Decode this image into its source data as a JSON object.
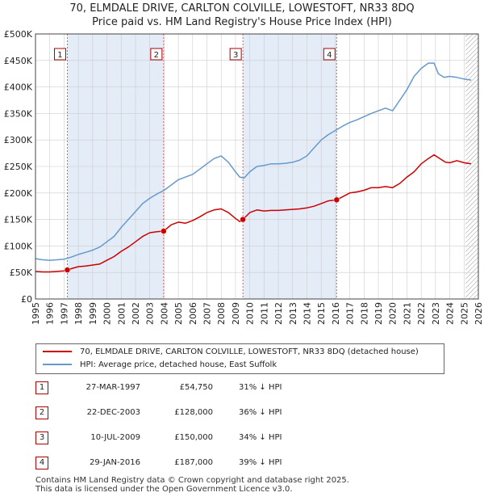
{
  "title_line1": "70, ELMDALE DRIVE, CARLTON COLVILLE, LOWESTOFT, NR33 8DQ",
  "title_line2": "Price paid vs. HM Land Registry's House Price Index (HPI)",
  "colors": {
    "price_line": "#cc0000",
    "hpi_line": "#6699cc",
    "shade": "#e4ecf8",
    "vline": "#e06060",
    "grid": "#cccccc",
    "hatch": "#999999"
  },
  "chart_data": {
    "type": "line",
    "ylim": [
      0,
      500000
    ],
    "xlim": [
      1995,
      2026
    ],
    "yticks": [
      0,
      50000,
      100000,
      150000,
      200000,
      250000,
      300000,
      350000,
      400000,
      450000,
      500000
    ],
    "ytick_labels": [
      "£0",
      "£50K",
      "£100K",
      "£150K",
      "£200K",
      "£250K",
      "£300K",
      "£350K",
      "£400K",
      "£450K",
      "£500K"
    ],
    "xticks": [
      1995,
      1996,
      1997,
      1998,
      1999,
      2000,
      2001,
      2002,
      2003,
      2004,
      2005,
      2006,
      2007,
      2008,
      2009,
      2010,
      2011,
      2012,
      2013,
      2014,
      2015,
      2016,
      2017,
      2018,
      2019,
      2020,
      2021,
      2022,
      2023,
      2024,
      2025,
      2026
    ],
    "xtick_labels": [
      "1995",
      "1996",
      "1997",
      "1998",
      "1999",
      "2000",
      "2001",
      "2002",
      "2003",
      "2004",
      "2005",
      "2006",
      "2007",
      "2008",
      "2009",
      "2010",
      "2011",
      "2012",
      "2013",
      "2014",
      "2015",
      "2016",
      "2017",
      "2018",
      "2019",
      "2020",
      "2021",
      "2022",
      "2023",
      "2024",
      "2025",
      "2026"
    ],
    "shaded_ranges": [
      [
        1997.23,
        2003.97
      ],
      [
        2009.52,
        2016.08
      ]
    ],
    "future_from": 2025.1,
    "series": [
      {
        "name": "70, ELMDALE DRIVE, CARLTON COLVILLE, LOWESTOFT, NR33 8DQ (detached house)",
        "color": "#cc0000",
        "x": [
          1995.0,
          1995.5,
          1996.0,
          1996.5,
          1997.0,
          1997.23,
          1997.6,
          1998.0,
          1998.5,
          1999.0,
          1999.5,
          2000.0,
          2000.5,
          2001.0,
          2001.5,
          2002.0,
          2002.5,
          2003.0,
          2003.5,
          2003.97,
          2004.5,
          2005.0,
          2005.5,
          2006.0,
          2006.5,
          2007.0,
          2007.5,
          2008.0,
          2008.5,
          2009.0,
          2009.3,
          2009.52,
          2010.0,
          2010.5,
          2011.0,
          2011.5,
          2012.0,
          2012.5,
          2013.0,
          2013.5,
          2014.0,
          2014.5,
          2015.0,
          2015.5,
          2016.08,
          2016.5,
          2017.0,
          2017.5,
          2018.0,
          2018.5,
          2019.0,
          2019.5,
          2020.0,
          2020.5,
          2021.0,
          2021.5,
          2022.0,
          2022.5,
          2022.9,
          2023.3,
          2023.7,
          2024.0,
          2024.5,
          2025.0,
          2025.5
        ],
        "values": [
          52000,
          51000,
          51000,
          52000,
          53000,
          54750,
          58000,
          61000,
          62000,
          64000,
          66000,
          73000,
          80000,
          90000,
          98000,
          108000,
          118000,
          125000,
          127000,
          128000,
          140000,
          145000,
          143000,
          148000,
          155000,
          163000,
          168000,
          170000,
          163000,
          152000,
          146000,
          150000,
          163000,
          168000,
          166000,
          167000,
          167000,
          168000,
          169000,
          170000,
          172000,
          175000,
          180000,
          185000,
          187000,
          193000,
          200000,
          202000,
          205000,
          210000,
          210000,
          212000,
          210000,
          218000,
          230000,
          240000,
          255000,
          265000,
          272000,
          265000,
          258000,
          257000,
          261000,
          257000,
          255000
        ]
      },
      {
        "name": "HPI: Average price, detached house, East Suffolk",
        "color": "#6699cc",
        "x": [
          1995.0,
          1995.5,
          1996.0,
          1996.5,
          1997.0,
          1997.5,
          1998.0,
          1998.5,
          1999.0,
          1999.5,
          2000.0,
          2000.5,
          2001.0,
          2001.5,
          2002.0,
          2002.5,
          2003.0,
          2003.5,
          2004.0,
          2004.5,
          2005.0,
          2005.5,
          2006.0,
          2006.5,
          2007.0,
          2007.5,
          2008.0,
          2008.5,
          2009.0,
          2009.3,
          2009.6,
          2010.0,
          2010.5,
          2011.0,
          2011.5,
          2012.0,
          2012.5,
          2013.0,
          2013.5,
          2014.0,
          2014.5,
          2015.0,
          2015.5,
          2016.0,
          2016.5,
          2017.0,
          2017.5,
          2018.0,
          2018.5,
          2019.0,
          2019.5,
          2020.0,
          2020.5,
          2021.0,
          2021.5,
          2022.0,
          2022.5,
          2022.9,
          2023.2,
          2023.6,
          2024.0,
          2024.5,
          2025.0,
          2025.5
        ],
        "values": [
          76000,
          74000,
          73000,
          74000,
          75000,
          79000,
          84000,
          88000,
          92000,
          98000,
          108000,
          118000,
          135000,
          150000,
          165000,
          180000,
          190000,
          198000,
          205000,
          215000,
          225000,
          230000,
          235000,
          245000,
          255000,
          265000,
          270000,
          258000,
          240000,
          230000,
          228000,
          240000,
          250000,
          252000,
          255000,
          255000,
          256000,
          258000,
          262000,
          270000,
          285000,
          300000,
          310000,
          318000,
          326000,
          333000,
          338000,
          344000,
          350000,
          355000,
          360000,
          355000,
          375000,
          395000,
          420000,
          435000,
          445000,
          445000,
          425000,
          418000,
          420000,
          418000,
          415000,
          413000
        ]
      }
    ],
    "sale_markers": [
      {
        "num": "1",
        "x": 1997.23,
        "y": 54750
      },
      {
        "num": "2",
        "x": 2003.97,
        "y": 128000
      },
      {
        "num": "3",
        "x": 2009.52,
        "y": 150000
      },
      {
        "num": "4",
        "x": 2016.08,
        "y": 187000
      }
    ]
  },
  "legend": {
    "price_label": "70, ELMDALE DRIVE, CARLTON COLVILLE, LOWESTOFT, NR33 8DQ (detached house)",
    "hpi_label": "HPI: Average price, detached house, East Suffolk"
  },
  "sales": [
    {
      "num": "1",
      "date": "27-MAR-1997",
      "price": "£54,750",
      "hpi": "31% ↓ HPI"
    },
    {
      "num": "2",
      "date": "22-DEC-2003",
      "price": "£128,000",
      "hpi": "36% ↓ HPI"
    },
    {
      "num": "3",
      "date": "10-JUL-2009",
      "price": "£150,000",
      "hpi": "34% ↓ HPI"
    },
    {
      "num": "4",
      "date": "29-JAN-2016",
      "price": "£187,000",
      "hpi": "39% ↓ HPI"
    }
  ],
  "footer_line1": "Contains HM Land Registry data © Crown copyright and database right 2025.",
  "footer_line2": "This data is licensed under the Open Government Licence v3.0."
}
